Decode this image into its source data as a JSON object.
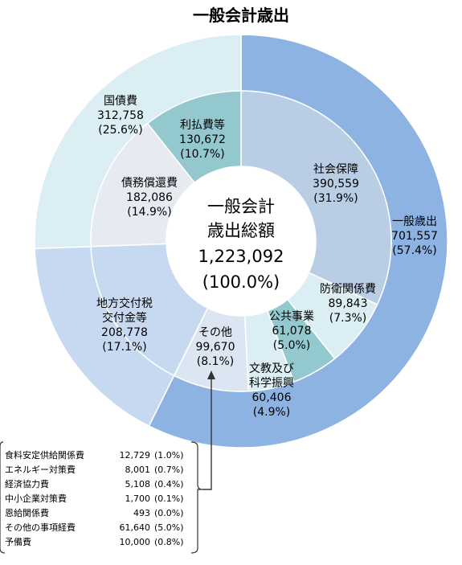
{
  "chart_data": {
    "type": "pie",
    "title": "一般会計歳出",
    "center": {
      "line1": "一般会計",
      "line2": "歳出総額",
      "value": "1,223,092",
      "pct": "(100.0%)"
    },
    "outer": [
      {
        "name": "一般歳出",
        "value": 701557,
        "value_label": "701,557",
        "pct_label": "(57.4%)",
        "color": "#8db3e2"
      },
      {
        "name": "地方交付税交付金等",
        "label_lines": [
          "地方交付税",
          "交付金等"
        ],
        "value": 208778,
        "value_label": "208,778",
        "pct_label": "(17.1%)",
        "color": "#c6d9f1"
      },
      {
        "name": "国債費",
        "value": 312758,
        "value_label": "312,758",
        "pct_label": "(25.6%)",
        "color": "#dbeef4"
      }
    ],
    "inner": [
      {
        "name": "社会保障",
        "value": 390559,
        "value_label": "390,559",
        "pct_label": "(31.9%)",
        "color": "#b9cde5"
      },
      {
        "name": "防衛関係費",
        "value": 89843,
        "value_label": "89,843",
        "pct_label": "(7.3%)",
        "color": "#dbeef4"
      },
      {
        "name": "公共事業",
        "value": 61078,
        "value_label": "61,078",
        "pct_label": "(5.0%)",
        "color": "#93c8cf"
      },
      {
        "name": "文教及び科学振興",
        "label_lines": [
          "文教及び",
          "科学振興"
        ],
        "value": 60406,
        "value_label": "60,406",
        "pct_label": "(4.9%)",
        "color": "#dbeef4"
      },
      {
        "name": "その他",
        "value": 99670,
        "value_label": "99,670",
        "pct_label": "(8.1%)",
        "color": "#dce6f2"
      },
      {
        "name": "地方交付税交付金等",
        "value": 208778,
        "color": "#c6d9f1"
      },
      {
        "name": "債務償還費",
        "value": 182086,
        "value_label": "182,086",
        "pct_label": "(14.9%)",
        "color": "#e6ebf2"
      },
      {
        "name": "利払費等",
        "value": 130672,
        "value_label": "130,672",
        "pct_label": "(10.7%)",
        "color": "#93c8cf"
      }
    ],
    "other_breakdown": [
      {
        "name": "食料安定供給関係費",
        "value": "12,729",
        "pct": "(1.0%)"
      },
      {
        "name": "エネルギー対策費",
        "value": "8,001",
        "pct": "(0.7%)"
      },
      {
        "name": "経済協力費",
        "value": "5,108",
        "pct": "(0.4%)"
      },
      {
        "name": "中小企業対策費",
        "value": "1,700",
        "pct": "(0.1%)"
      },
      {
        "name": "恩給関係費",
        "value": "493",
        "pct": "(0.0%)"
      },
      {
        "name": "その他の事項経費",
        "value": "61,640",
        "pct": "(5.0%)"
      },
      {
        "name": "予備費",
        "value": "10,000",
        "pct": "(0.8%)"
      }
    ]
  }
}
